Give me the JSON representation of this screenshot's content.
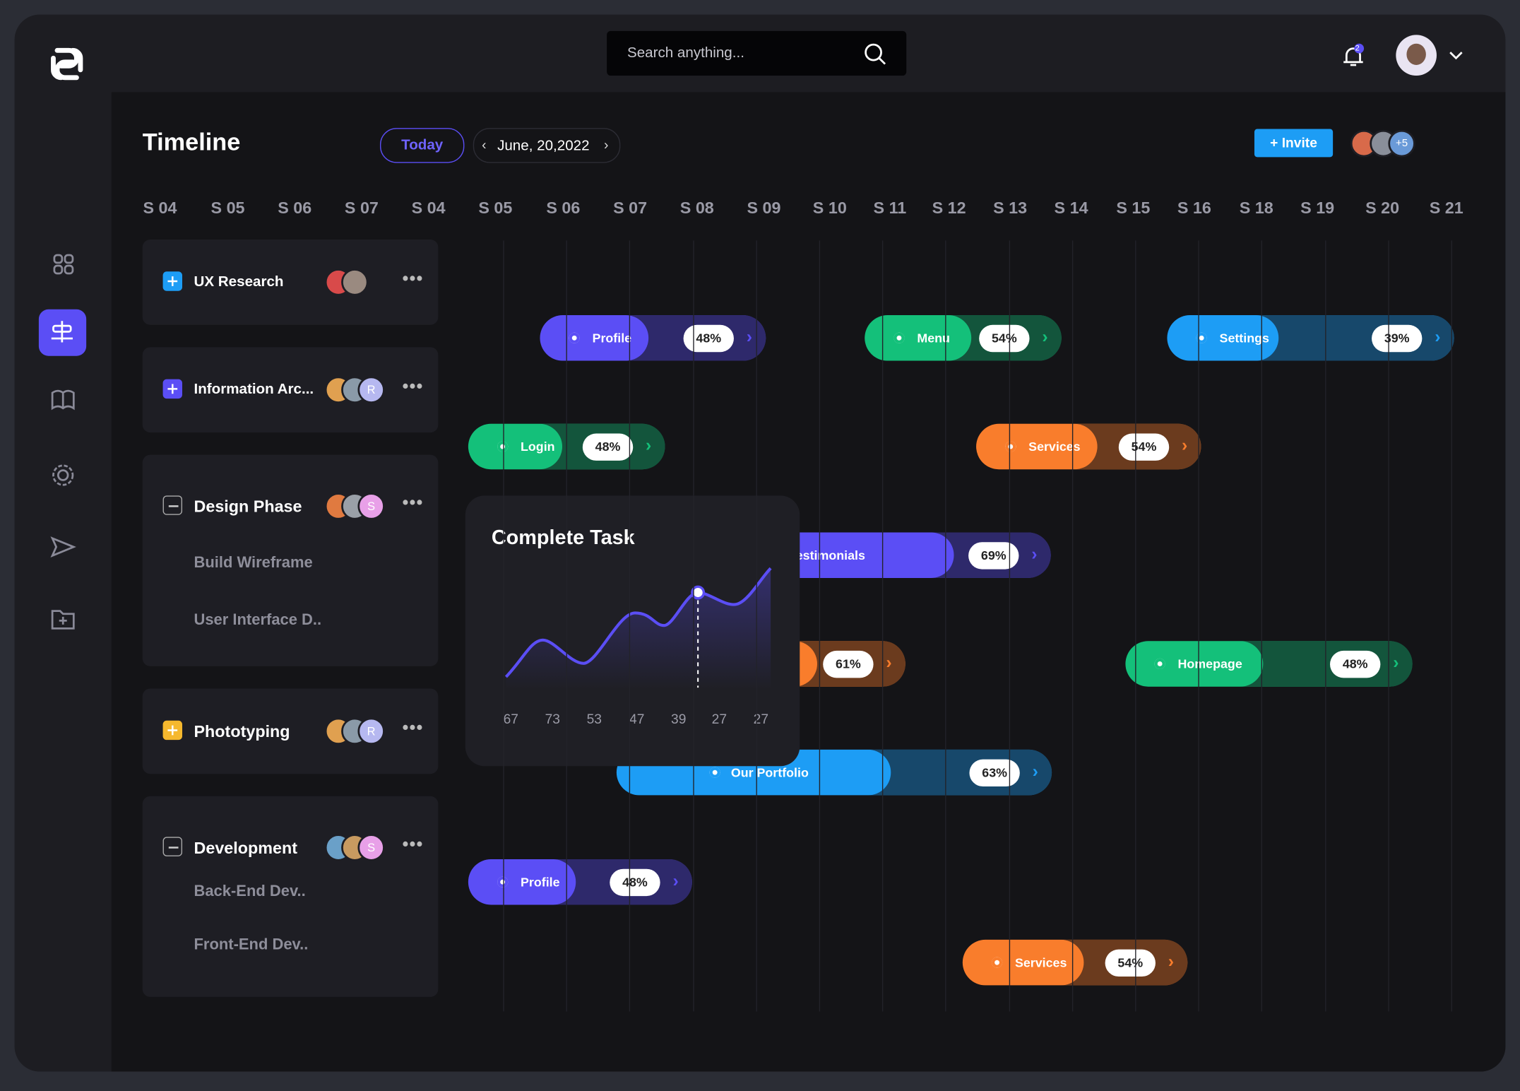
{
  "header": {
    "search_placeholder": "Search anything...",
    "notification_count": "2"
  },
  "timeline": {
    "title": "Timeline",
    "today": "Today",
    "date": "June, 20,2022",
    "invite": "+ Invite",
    "extra_members": "+5",
    "weeks": [
      "S 04",
      "S 05",
      "S 06",
      "S 07",
      "S 04",
      "S 05",
      "S 06",
      "S 07",
      "S 08",
      "S 09",
      "S 10",
      "S 11",
      "S 12",
      "S 13",
      "S 14",
      "S 15",
      "S 16",
      "S 18",
      "S 19",
      "S 20",
      "S 21"
    ]
  },
  "tasks": [
    {
      "name": "UX Research"
    },
    {
      "name": "Information Arc...",
      "avatar_letter": "R"
    },
    {
      "name": "Design Phase",
      "avatar_letter": "S",
      "subtasks": [
        "Build Wireframe",
        "User Interface D.."
      ]
    },
    {
      "name": "Phototyping",
      "avatar_letter": "R"
    },
    {
      "name": "Development",
      "avatar_letter": "S",
      "subtasks": [
        "Back-End Dev..",
        "Front-End Dev.."
      ]
    }
  ],
  "bars": [
    {
      "label": "Profile",
      "value": 48,
      "value_label": "48%",
      "color": "#5b4ef5"
    },
    {
      "label": "Menu",
      "value": 54,
      "value_label": "54%",
      "color": "#14c07a"
    },
    {
      "label": "Settings",
      "value": 39,
      "value_label": "39%",
      "color": "#1d9df5"
    },
    {
      "label": "Login",
      "value": 48,
      "value_label": "48%",
      "color": "#14c07a"
    },
    {
      "label": "Services",
      "value": 54,
      "value_label": "54%",
      "color": "#f97d2c"
    },
    {
      "label": "Testimonials",
      "value": 69,
      "value_label": "69%",
      "color": "#5b4ef5"
    },
    {
      "label": null,
      "value": 61,
      "value_label": "61%",
      "color": "#f97d2c"
    },
    {
      "label": "Homepage",
      "value": 48,
      "value_label": "48%",
      "color": "#14c07a"
    },
    {
      "label": "Our Portfolio",
      "value": 63,
      "value_label": "63%",
      "color": "#1d9df5"
    },
    {
      "label": "Profile",
      "value": 48,
      "value_label": "48%",
      "color": "#5b4ef5"
    },
    {
      "label": "Services",
      "value": 54,
      "value_label": "54%",
      "color": "#f97d2c"
    }
  ],
  "card": {
    "title": "Complete Task",
    "x_labels": [
      "67",
      "73",
      "53",
      "47",
      "39",
      "27",
      "27"
    ]
  }
}
